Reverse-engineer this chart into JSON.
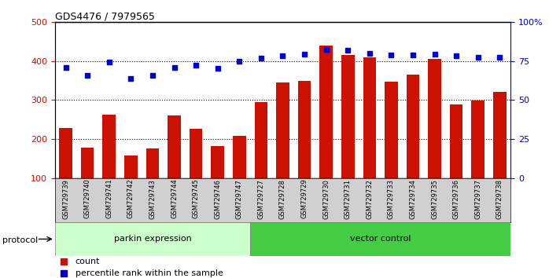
{
  "title": "GDS4476 / 7979565",
  "samples": [
    "GSM729739",
    "GSM729740",
    "GSM729741",
    "GSM729742",
    "GSM729743",
    "GSM729744",
    "GSM729745",
    "GSM729746",
    "GSM729747",
    "GSM729727",
    "GSM729728",
    "GSM729729",
    "GSM729730",
    "GSM729731",
    "GSM729732",
    "GSM729733",
    "GSM729734",
    "GSM729735",
    "GSM729736",
    "GSM729737",
    "GSM729738"
  ],
  "counts": [
    228,
    178,
    262,
    158,
    175,
    260,
    226,
    181,
    208,
    295,
    345,
    350,
    440,
    415,
    410,
    348,
    365,
    405,
    289,
    299,
    322
  ],
  "percentiles": [
    384,
    364,
    398,
    355,
    364,
    383,
    390,
    381,
    400,
    408,
    413,
    418,
    430,
    428,
    420,
    415,
    415,
    418,
    413,
    409,
    410
  ],
  "group1_count": 9,
  "group2_count": 12,
  "group1_label": "parkin expression",
  "group2_label": "vector control",
  "group1_color": "#ccffcc",
  "group2_color": "#44cc44",
  "bar_color": "#cc1100",
  "dot_color": "#0000cc",
  "protocol_label": "protocol",
  "legend_count": "count",
  "legend_percentile": "percentile rank within the sample",
  "ylim_left": [
    100,
    500
  ],
  "ylim_right": [
    0,
    100
  ],
  "yticks_left": [
    100,
    200,
    300,
    400,
    500
  ],
  "yticks_right": [
    0,
    25,
    50,
    75,
    100
  ],
  "plot_bg": "#ffffff",
  "label_bg": "#d0d0d0"
}
